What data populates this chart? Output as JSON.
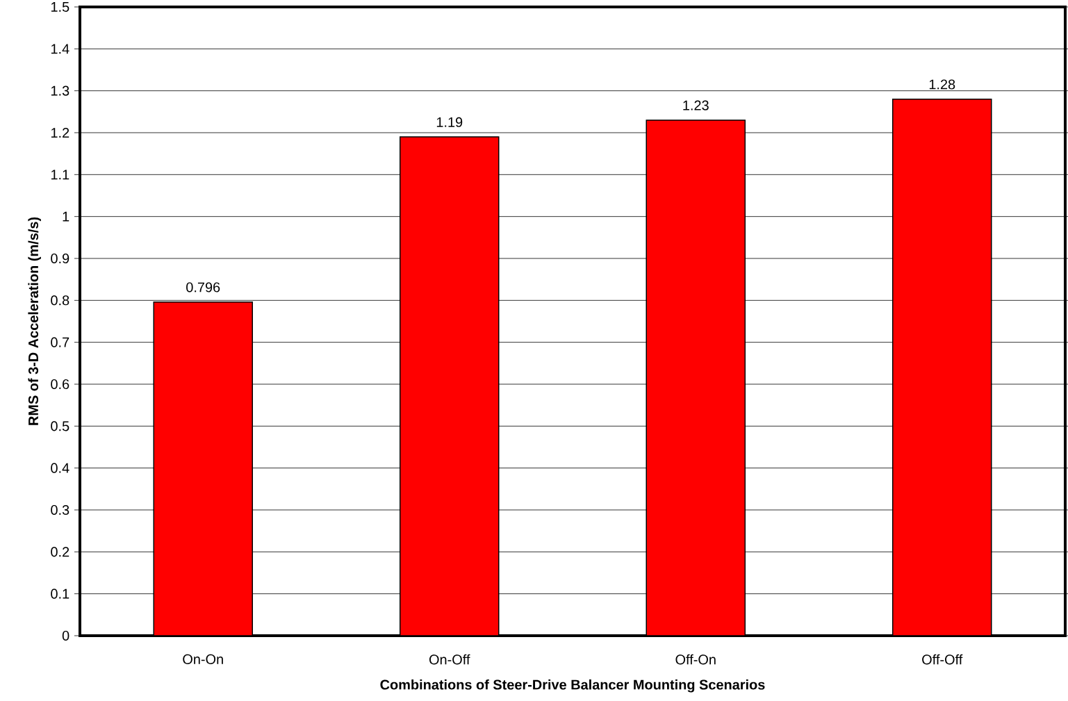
{
  "chart_data": {
    "type": "bar",
    "xlabel": "Combinations of Steer-Drive Balancer Mounting Scenarios",
    "ylabel": "RMS of 3-D Acceleration (m/s/s)",
    "categories": [
      "On-On",
      "On-Off",
      "Off-On",
      "Off-Off"
    ],
    "values": [
      0.796,
      1.19,
      1.23,
      1.28
    ],
    "color": "#ff0000",
    "ylim": [
      0,
      1.5
    ],
    "yticks": [
      0,
      0.1,
      0.2,
      0.3,
      0.4,
      0.5,
      0.6,
      0.7,
      0.8,
      0.9,
      1,
      1.1,
      1.2,
      1.3,
      1.4,
      1.5
    ],
    "grid": "y",
    "data_labels": true
  }
}
